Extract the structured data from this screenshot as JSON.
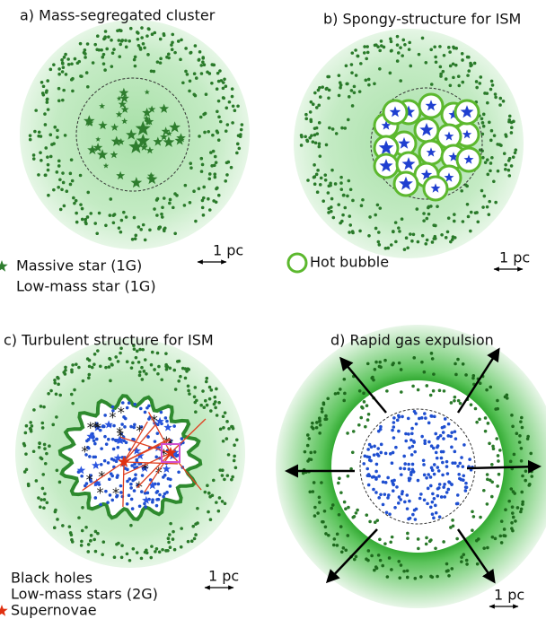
{
  "panels": [
    {
      "title": "a) Mass-segregated cluster",
      "scale_label": "1 pc",
      "legend": [
        "Massive star (1G)",
        "Low-mass star (1G)"
      ]
    },
    {
      "title": "b) Spongy-structure for ISM",
      "scale_label": "1 pc",
      "legend": [
        "Hot bubble"
      ]
    },
    {
      "title": "c) Turbulent structure for ISM",
      "scale_label": "1 pc",
      "legend": [
        "Black holes",
        "Low-mass stars (2G)",
        "Supernovae"
      ]
    },
    {
      "title": "d) Rapid gas expulsion",
      "scale_label": "1 pc"
    }
  ]
}
